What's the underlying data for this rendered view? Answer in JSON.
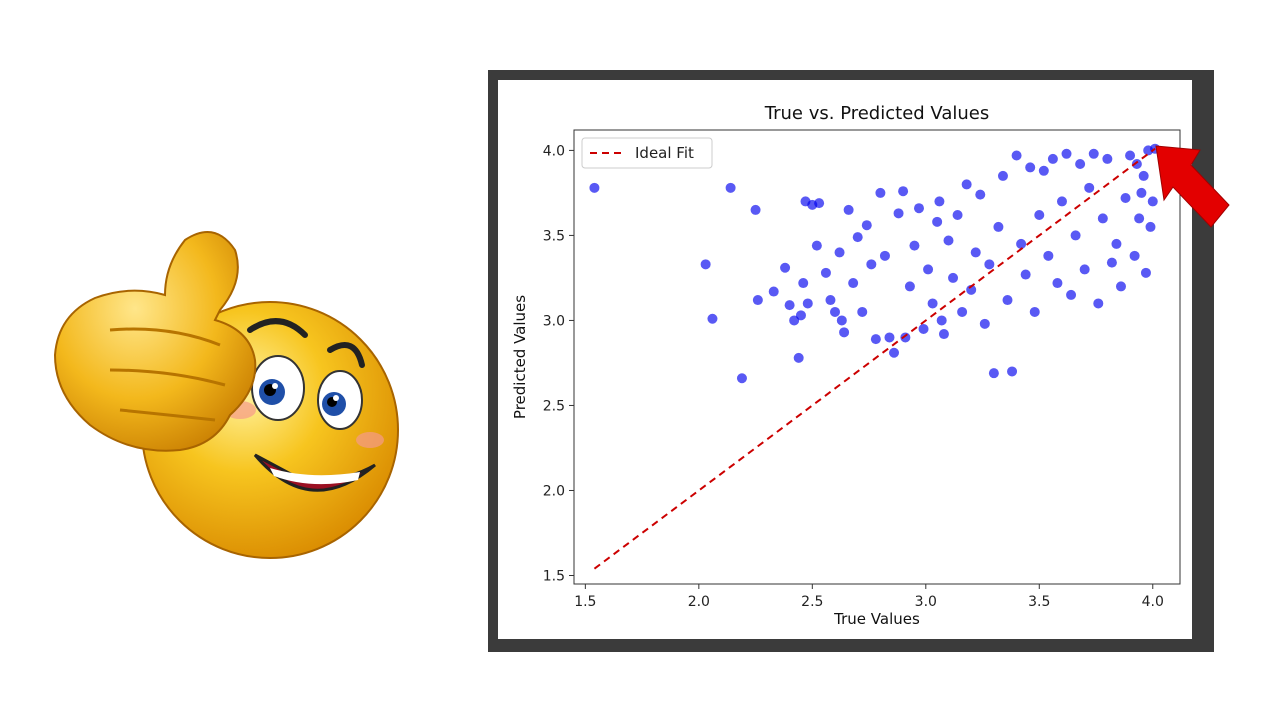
{
  "chart_data": {
    "type": "scatter",
    "title": "True vs. Predicted Values",
    "xlabel": "True Values",
    "ylabel": "Predicted Values",
    "xlim": [
      1.45,
      4.12
    ],
    "ylim": [
      1.45,
      4.12
    ],
    "xticks": [
      "1.5",
      "2.0",
      "2.5",
      "3.0",
      "3.5",
      "4.0"
    ],
    "yticks": [
      "1.5",
      "2.0",
      "2.5",
      "3.0",
      "3.5",
      "4.0"
    ],
    "grid": false,
    "legend_position": "top-left",
    "series": [
      {
        "type": "scatter",
        "color": "#0000ee",
        "points": [
          [
            1.54,
            3.78
          ],
          [
            2.03,
            3.33
          ],
          [
            2.06,
            3.01
          ],
          [
            2.14,
            3.78
          ],
          [
            2.19,
            2.66
          ],
          [
            2.25,
            3.65
          ],
          [
            2.26,
            3.12
          ],
          [
            2.33,
            3.17
          ],
          [
            2.38,
            3.31
          ],
          [
            2.4,
            3.09
          ],
          [
            2.42,
            3.0
          ],
          [
            2.44,
            2.78
          ],
          [
            2.45,
            3.03
          ],
          [
            2.46,
            3.22
          ],
          [
            2.47,
            3.7
          ],
          [
            2.48,
            3.1
          ],
          [
            2.5,
            3.68
          ],
          [
            2.52,
            3.44
          ],
          [
            2.53,
            3.69
          ],
          [
            2.56,
            3.28
          ],
          [
            2.58,
            3.12
          ],
          [
            2.6,
            3.05
          ],
          [
            2.62,
            3.4
          ],
          [
            2.63,
            3.0
          ],
          [
            2.64,
            2.93
          ],
          [
            2.66,
            3.65
          ],
          [
            2.68,
            3.22
          ],
          [
            2.7,
            3.49
          ],
          [
            2.72,
            3.05
          ],
          [
            2.74,
            3.56
          ],
          [
            2.76,
            3.33
          ],
          [
            2.78,
            2.89
          ],
          [
            2.8,
            3.75
          ],
          [
            2.82,
            3.38
          ],
          [
            2.84,
            2.9
          ],
          [
            2.86,
            2.81
          ],
          [
            2.88,
            3.63
          ],
          [
            2.9,
            3.76
          ],
          [
            2.91,
            2.9
          ],
          [
            2.93,
            3.2
          ],
          [
            2.95,
            3.44
          ],
          [
            2.97,
            3.66
          ],
          [
            2.99,
            2.95
          ],
          [
            3.01,
            3.3
          ],
          [
            3.03,
            3.1
          ],
          [
            3.05,
            3.58
          ],
          [
            3.06,
            3.7
          ],
          [
            3.07,
            3.0
          ],
          [
            3.08,
            2.92
          ],
          [
            3.1,
            3.47
          ],
          [
            3.12,
            3.25
          ],
          [
            3.14,
            3.62
          ],
          [
            3.16,
            3.05
          ],
          [
            3.18,
            3.8
          ],
          [
            3.2,
            3.18
          ],
          [
            3.22,
            3.4
          ],
          [
            3.24,
            3.74
          ],
          [
            3.26,
            2.98
          ],
          [
            3.28,
            3.33
          ],
          [
            3.3,
            2.69
          ],
          [
            3.32,
            3.55
          ],
          [
            3.34,
            3.85
          ],
          [
            3.36,
            3.12
          ],
          [
            3.38,
            2.7
          ],
          [
            3.4,
            3.97
          ],
          [
            3.42,
            3.45
          ],
          [
            3.44,
            3.27
          ],
          [
            3.46,
            3.9
          ],
          [
            3.48,
            3.05
          ],
          [
            3.5,
            3.62
          ],
          [
            3.52,
            3.88
          ],
          [
            3.54,
            3.38
          ],
          [
            3.56,
            3.95
          ],
          [
            3.58,
            3.22
          ],
          [
            3.6,
            3.7
          ],
          [
            3.62,
            3.98
          ],
          [
            3.64,
            3.15
          ],
          [
            3.66,
            3.5
          ],
          [
            3.68,
            3.92
          ],
          [
            3.7,
            3.3
          ],
          [
            3.72,
            3.78
          ],
          [
            3.74,
            3.98
          ],
          [
            3.76,
            3.1
          ],
          [
            3.78,
            3.6
          ],
          [
            3.8,
            3.95
          ],
          [
            3.82,
            3.34
          ],
          [
            3.84,
            3.45
          ],
          [
            3.86,
            3.2
          ],
          [
            3.88,
            3.72
          ],
          [
            3.9,
            3.97
          ],
          [
            3.92,
            3.38
          ],
          [
            3.94,
            3.6
          ],
          [
            3.96,
            3.85
          ],
          [
            3.98,
            4.0
          ],
          [
            4.0,
            3.7
          ],
          [
            4.01,
            4.01
          ],
          [
            3.99,
            3.55
          ],
          [
            3.97,
            3.28
          ],
          [
            3.95,
            3.75
          ],
          [
            3.93,
            3.92
          ]
        ]
      },
      {
        "type": "line",
        "name": "Ideal Fit",
        "style": "dashed",
        "color": "#cc0000",
        "x": [
          1.54,
          4.01
        ],
        "y": [
          1.54,
          4.01
        ]
      }
    ]
  },
  "decorations": {
    "emoji": "thumbs-up-smiley",
    "arrow": "red-arrow-pointing-top-right"
  }
}
